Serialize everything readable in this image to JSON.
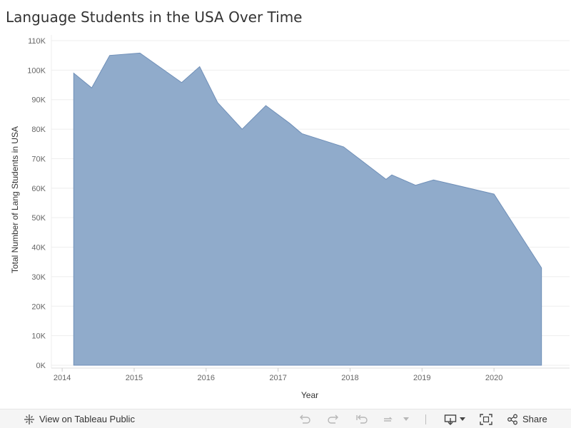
{
  "title": "Language Students in the USA Over Time",
  "chart_data": {
    "type": "area",
    "title": "Language Students in the USA Over Time",
    "xlabel": "Year",
    "ylabel": "Total Number of Lang Students in USA",
    "x_ticks": [
      "2014",
      "2015",
      "2016",
      "2017",
      "2018",
      "2019",
      "2020"
    ],
    "y_ticks": [
      "0K",
      "10K",
      "20K",
      "30K",
      "40K",
      "50K",
      "60K",
      "70K",
      "80K",
      "90K",
      "100K",
      "110K"
    ],
    "xlim": [
      2013.85,
      2021.05
    ],
    "ylim": [
      0,
      110000
    ],
    "series": [
      {
        "color": "#8aa7c8",
        "points": [
          {
            "x": 2014.16,
            "y": 99000
          },
          {
            "x": 2014.41,
            "y": 94000
          },
          {
            "x": 2014.66,
            "y": 105000
          },
          {
            "x": 2015.08,
            "y": 105800
          },
          {
            "x": 2015.66,
            "y": 95800
          },
          {
            "x": 2015.91,
            "y": 101200
          },
          {
            "x": 2016.16,
            "y": 89000
          },
          {
            "x": 2016.5,
            "y": 80000
          },
          {
            "x": 2016.83,
            "y": 88000
          },
          {
            "x": 2017.16,
            "y": 82000
          },
          {
            "x": 2017.33,
            "y": 78500
          },
          {
            "x": 2017.91,
            "y": 74000
          },
          {
            "x": 2018.5,
            "y": 63000
          },
          {
            "x": 2018.58,
            "y": 64500
          },
          {
            "x": 2018.91,
            "y": 61000
          },
          {
            "x": 2019.16,
            "y": 62800
          },
          {
            "x": 2020.0,
            "y": 58000
          },
          {
            "x": 2020.66,
            "y": 33000
          }
        ]
      }
    ],
    "grid": true,
    "legend": "none"
  },
  "footer": {
    "view_label": "View on Tableau Public",
    "share_label": "Share"
  }
}
